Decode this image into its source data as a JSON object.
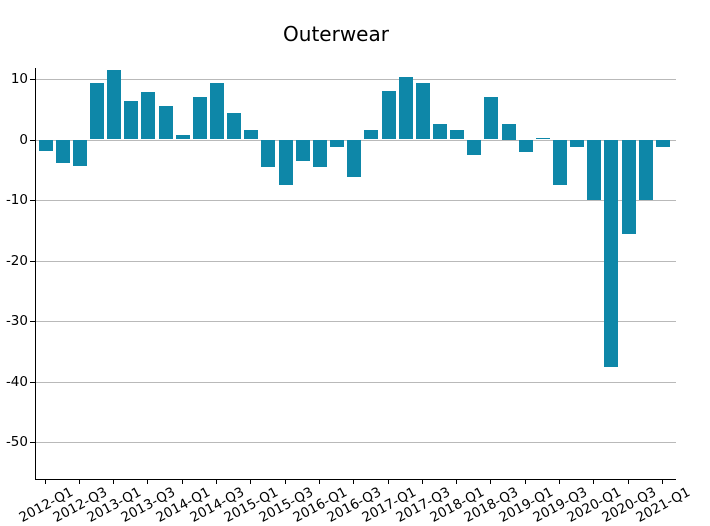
{
  "chart_data": {
    "type": "bar",
    "title": "Outerwear",
    "categories": [
      "2012-Q1",
      "2012-Q2",
      "2012-Q3",
      "2012-Q4",
      "2013-Q1",
      "2013-Q2",
      "2013-Q3",
      "2013-Q4",
      "2014-Q1",
      "2014-Q2",
      "2014-Q3",
      "2014-Q4",
      "2015-Q1",
      "2015-Q2",
      "2015-Q3",
      "2015-Q4",
      "2016-Q1",
      "2016-Q2",
      "2016-Q3",
      "2016-Q4",
      "2017-Q1",
      "2017-Q2",
      "2017-Q3",
      "2017-Q4",
      "2018-Q1",
      "2018-Q2",
      "2018-Q3",
      "2018-Q4",
      "2019-Q1",
      "2019-Q2",
      "2019-Q3",
      "2019-Q4",
      "2020-Q1",
      "2020-Q2",
      "2020-Q3",
      "2020-Q4",
      "2021-Q1"
    ],
    "values": [
      -1.9,
      -3.9,
      -4.4,
      9.4,
      11.5,
      6.3,
      7.9,
      5.6,
      0.7,
      7.1,
      9.3,
      4.4,
      1.5,
      -4.6,
      -7.6,
      -3.6,
      -4.5,
      -1.2,
      -6.2,
      1.5,
      8.0,
      10.4,
      9.4,
      2.6,
      1.5,
      -2.6,
      7.0,
      2.5,
      -2.0,
      0.3,
      -7.5,
      -1.2,
      -10.0,
      -37.6,
      -15.7,
      -10.0,
      -1.3
    ],
    "xtick_labels": [
      "2012-Q1",
      "2012-Q3",
      "2013-Q1",
      "2013-Q3",
      "2014-Q1",
      "2014-Q3",
      "2015-Q1",
      "2015-Q3",
      "2016-Q1",
      "2016-Q3",
      "2017-Q1",
      "2017-Q3",
      "2018-Q1",
      "2018-Q3",
      "2019-Q1",
      "2019-Q3",
      "2020-Q1",
      "2020-Q3",
      "2021-Q1"
    ],
    "yticks": [
      10,
      0,
      -10,
      -20,
      -30,
      -40,
      -50
    ],
    "ylim": [
      -56.3,
      11.8
    ],
    "xlabel": "",
    "ylabel": "",
    "grid": true,
    "legend": false,
    "bar_color": "#0e87a8",
    "grid_color": "#b9b9b9",
    "axis_color": "#000000",
    "background_color": "#ffffff"
  }
}
